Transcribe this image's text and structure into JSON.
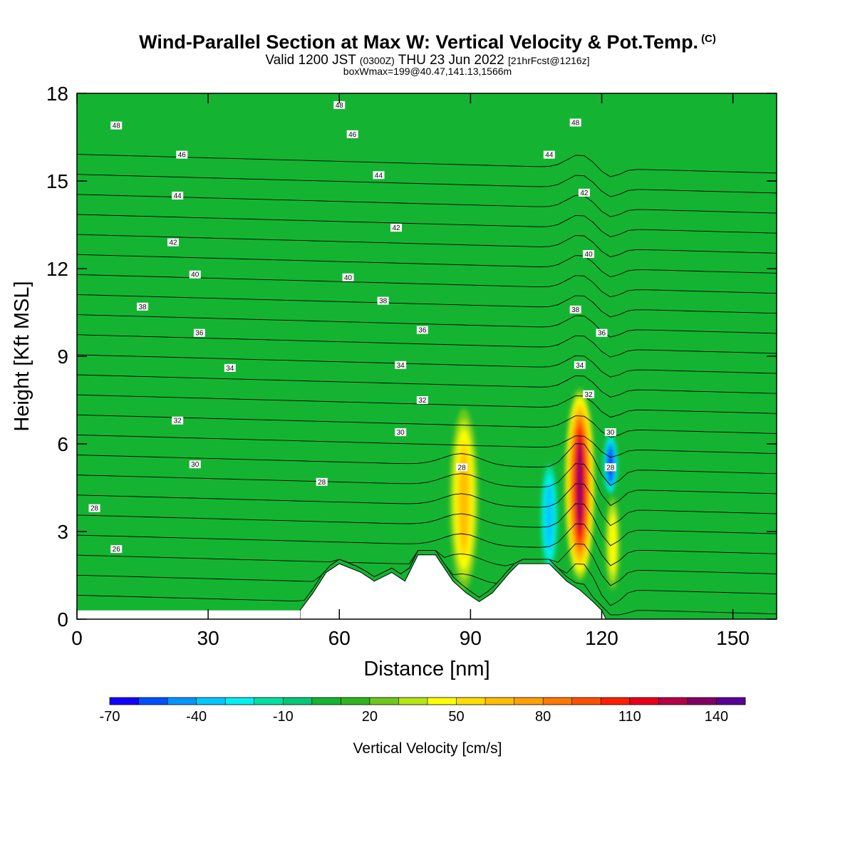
{
  "header": {
    "title": "Wind-Parallel Section at Max W: Vertical Velocity & Pot.Temp.",
    "copyright": "(C)",
    "valid_prefix": "Valid 1200 JST",
    "valid_utc": "(0300Z)",
    "valid_date": "THU 23 Jun 2022",
    "forecast": "[21hrFcst@1216z]",
    "box_info": "boxWmax=199@40.47,141.13,1566m"
  },
  "chart_data": {
    "type": "heatmap",
    "xlabel": "Distance [nm]",
    "ylabel": "Height [Kft MSL]",
    "xlim": [
      0,
      160
    ],
    "ylim": [
      0,
      18
    ],
    "x_ticks": [
      "0",
      "30",
      "60",
      "90",
      "120",
      "150"
    ],
    "y_ticks": [
      "0",
      "3",
      "6",
      "9",
      "12",
      "15",
      "18"
    ],
    "colorbar": {
      "label": "Vertical Velocity [cm/s]",
      "tick_labels": [
        "-70",
        "-40",
        "-10",
        "20",
        "50",
        "80",
        "110",
        "140"
      ],
      "levels": [
        -70,
        -60,
        -50,
        -40,
        -30,
        -20,
        -10,
        0,
        10,
        20,
        30,
        40,
        50,
        60,
        70,
        80,
        90,
        100,
        110,
        120,
        130,
        140,
        150
      ],
      "colors": [
        "#1400ff",
        "#0050ff",
        "#0096ff",
        "#00c8ff",
        "#00f0f0",
        "#00e0a0",
        "#00c878",
        "#14b432",
        "#32b41e",
        "#6ec81e",
        "#b4e614",
        "#ffff00",
        "#ffdc00",
        "#ffbe00",
        "#ffa000",
        "#ff7800",
        "#ff5000",
        "#ff1e00",
        "#e6001e",
        "#b40046",
        "#820064",
        "#5a0096"
      ]
    },
    "theta_labels": [
      {
        "x": 9,
        "z": 16.9,
        "text": "48"
      },
      {
        "x": 24,
        "z": 15.9,
        "text": "46"
      },
      {
        "x": 23,
        "z": 14.5,
        "text": "44"
      },
      {
        "x": 22,
        "z": 12.9,
        "text": "42"
      },
      {
        "x": 27,
        "z": 11.8,
        "text": "40"
      },
      {
        "x": 15,
        "z": 10.7,
        "text": "38"
      },
      {
        "x": 28,
        "z": 9.8,
        "text": "36"
      },
      {
        "x": 35,
        "z": 8.6,
        "text": "34"
      },
      {
        "x": 23,
        "z": 6.8,
        "text": "32"
      },
      {
        "x": 27,
        "z": 5.3,
        "text": "30"
      },
      {
        "x": 4,
        "z": 3.8,
        "text": "28"
      },
      {
        "x": 9,
        "z": 2.4,
        "text": "26"
      },
      {
        "x": 60,
        "z": 17.6,
        "text": "48"
      },
      {
        "x": 63,
        "z": 16.6,
        "text": "46"
      },
      {
        "x": 69,
        "z": 15.2,
        "text": "44"
      },
      {
        "x": 73,
        "z": 13.4,
        "text": "42"
      },
      {
        "x": 62,
        "z": 11.7,
        "text": "40"
      },
      {
        "x": 70,
        "z": 10.9,
        "text": "38"
      },
      {
        "x": 79,
        "z": 9.9,
        "text": "36"
      },
      {
        "x": 74,
        "z": 8.7,
        "text": "34"
      },
      {
        "x": 79,
        "z": 7.5,
        "text": "32"
      },
      {
        "x": 74,
        "z": 6.4,
        "text": "30"
      },
      {
        "x": 88,
        "z": 5.2,
        "text": "28"
      },
      {
        "x": 56,
        "z": 4.7,
        "text": "28"
      },
      {
        "x": 114,
        "z": 17.0,
        "text": "48"
      },
      {
        "x": 108,
        "z": 15.9,
        "text": "44"
      },
      {
        "x": 116,
        "z": 14.6,
        "text": "42"
      },
      {
        "x": 117,
        "z": 12.5,
        "text": "40"
      },
      {
        "x": 114,
        "z": 10.6,
        "text": "38"
      },
      {
        "x": 120,
        "z": 9.8,
        "text": "36"
      },
      {
        "x": 115,
        "z": 8.7,
        "text": "34"
      },
      {
        "x": 117,
        "z": 7.7,
        "text": "32"
      },
      {
        "x": 122,
        "z": 6.4,
        "text": "30"
      },
      {
        "x": 122,
        "z": 5.2,
        "text": "28"
      }
    ],
    "terrain_kft": [
      [
        51,
        0.3
      ],
      [
        54,
        0.9
      ],
      [
        57,
        1.6
      ],
      [
        60,
        1.9
      ],
      [
        65,
        1.6
      ],
      [
        68,
        1.3
      ],
      [
        72,
        1.6
      ],
      [
        75,
        1.3
      ],
      [
        78,
        2.2
      ],
      [
        82,
        2.2
      ],
      [
        86,
        1.3
      ],
      [
        89,
        0.9
      ],
      [
        92,
        0.6
      ],
      [
        95,
        0.9
      ],
      [
        99,
        1.6
      ],
      [
        101,
        1.9
      ],
      [
        108,
        1.9
      ],
      [
        112,
        1.3
      ],
      [
        115,
        1.0
      ],
      [
        118,
        0.6
      ],
      [
        120,
        0.3
      ],
      [
        121,
        0
      ]
    ],
    "updraft_cores": [
      {
        "x": 115,
        "z_bottom": 1.3,
        "z_top": 7.9,
        "w_max": 130
      },
      {
        "x": 88.5,
        "z_bottom": 1.0,
        "z_top": 7.2,
        "w_max": 60
      },
      {
        "x": 122.5,
        "z_bottom": 1.0,
        "z_top": 4.2,
        "w_max": 45
      }
    ],
    "downdraft_cores": [
      {
        "x": 122,
        "z_bottom": 4.3,
        "z_top": 6.3,
        "w_min": -70
      },
      {
        "x": 108,
        "z_bottom": 1.7,
        "z_top": 5.3,
        "w_min": -45
      }
    ]
  }
}
